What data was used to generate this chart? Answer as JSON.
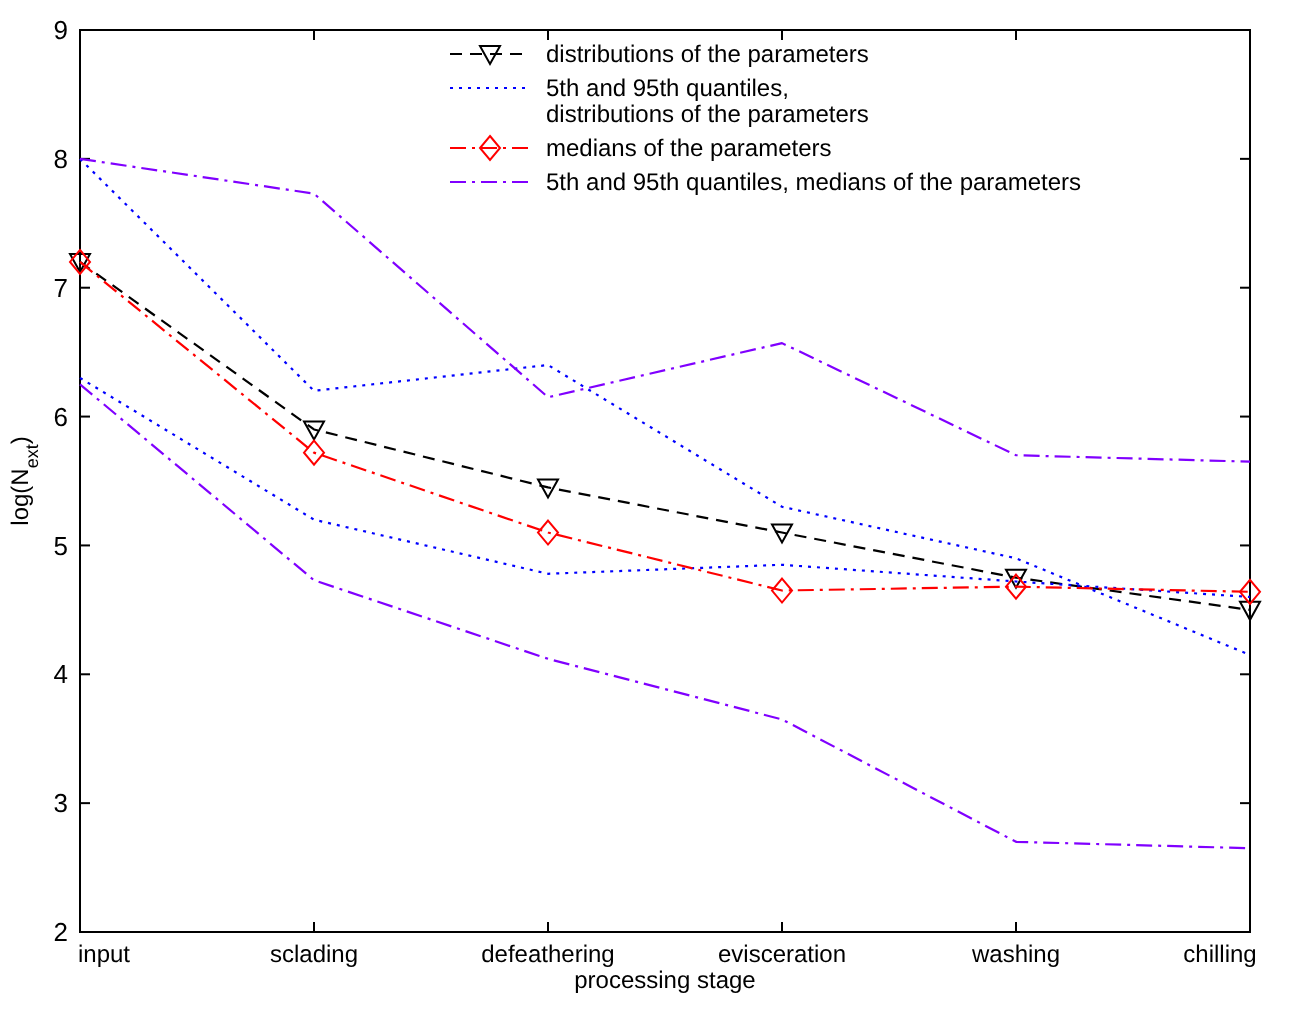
{
  "chart_data": {
    "type": "line",
    "xlabel": "processing stage",
    "ylabel": "log(N$_{ext}$)",
    "categories": [
      "input",
      "sclading",
      "defeathering",
      "evisceration",
      "washing",
      "chilling"
    ],
    "ylim": [
      2,
      9
    ],
    "yticks": [
      2,
      3,
      4,
      5,
      6,
      7,
      8,
      9
    ],
    "grid": false,
    "legend": "top right",
    "series": [
      {
        "name": "distributions of the parameters",
        "color": "#000000",
        "line_style": "dashed",
        "marker": "triangle",
        "values": [
          7.2,
          5.9,
          5.45,
          5.1,
          4.75,
          4.5
        ]
      },
      {
        "name": "5th and 95th quantiles,\ndistributions of the parameters",
        "color": "#0000ff",
        "line_style": "dotted",
        "marker": "none",
        "values": [
          8.0,
          6.2,
          6.4,
          5.3,
          4.9,
          4.15
        ]
      },
      {
        "color": "#0000ff",
        "line_style": "dotted",
        "marker": "none",
        "values": [
          6.3,
          5.2,
          4.78,
          4.85,
          4.72,
          4.6
        ]
      },
      {
        "name": "medians of the parameters",
        "color": "#ff0000",
        "line_style": "dashdot",
        "marker": "diamond",
        "values": [
          7.2,
          5.72,
          5.1,
          4.65,
          4.68,
          4.64
        ]
      },
      {
        "name": "5th and 95th quantiles, medians of the parameters",
        "color": "#8000ff",
        "line_style": "dashdot",
        "marker": "none",
        "values": [
          8.0,
          7.73,
          6.15,
          6.57,
          5.7,
          5.65
        ]
      },
      {
        "color": "#8000ff",
        "line_style": "dashdot",
        "marker": "none",
        "values": [
          6.25,
          4.73,
          4.12,
          3.65,
          2.7,
          2.65
        ]
      }
    ]
  }
}
